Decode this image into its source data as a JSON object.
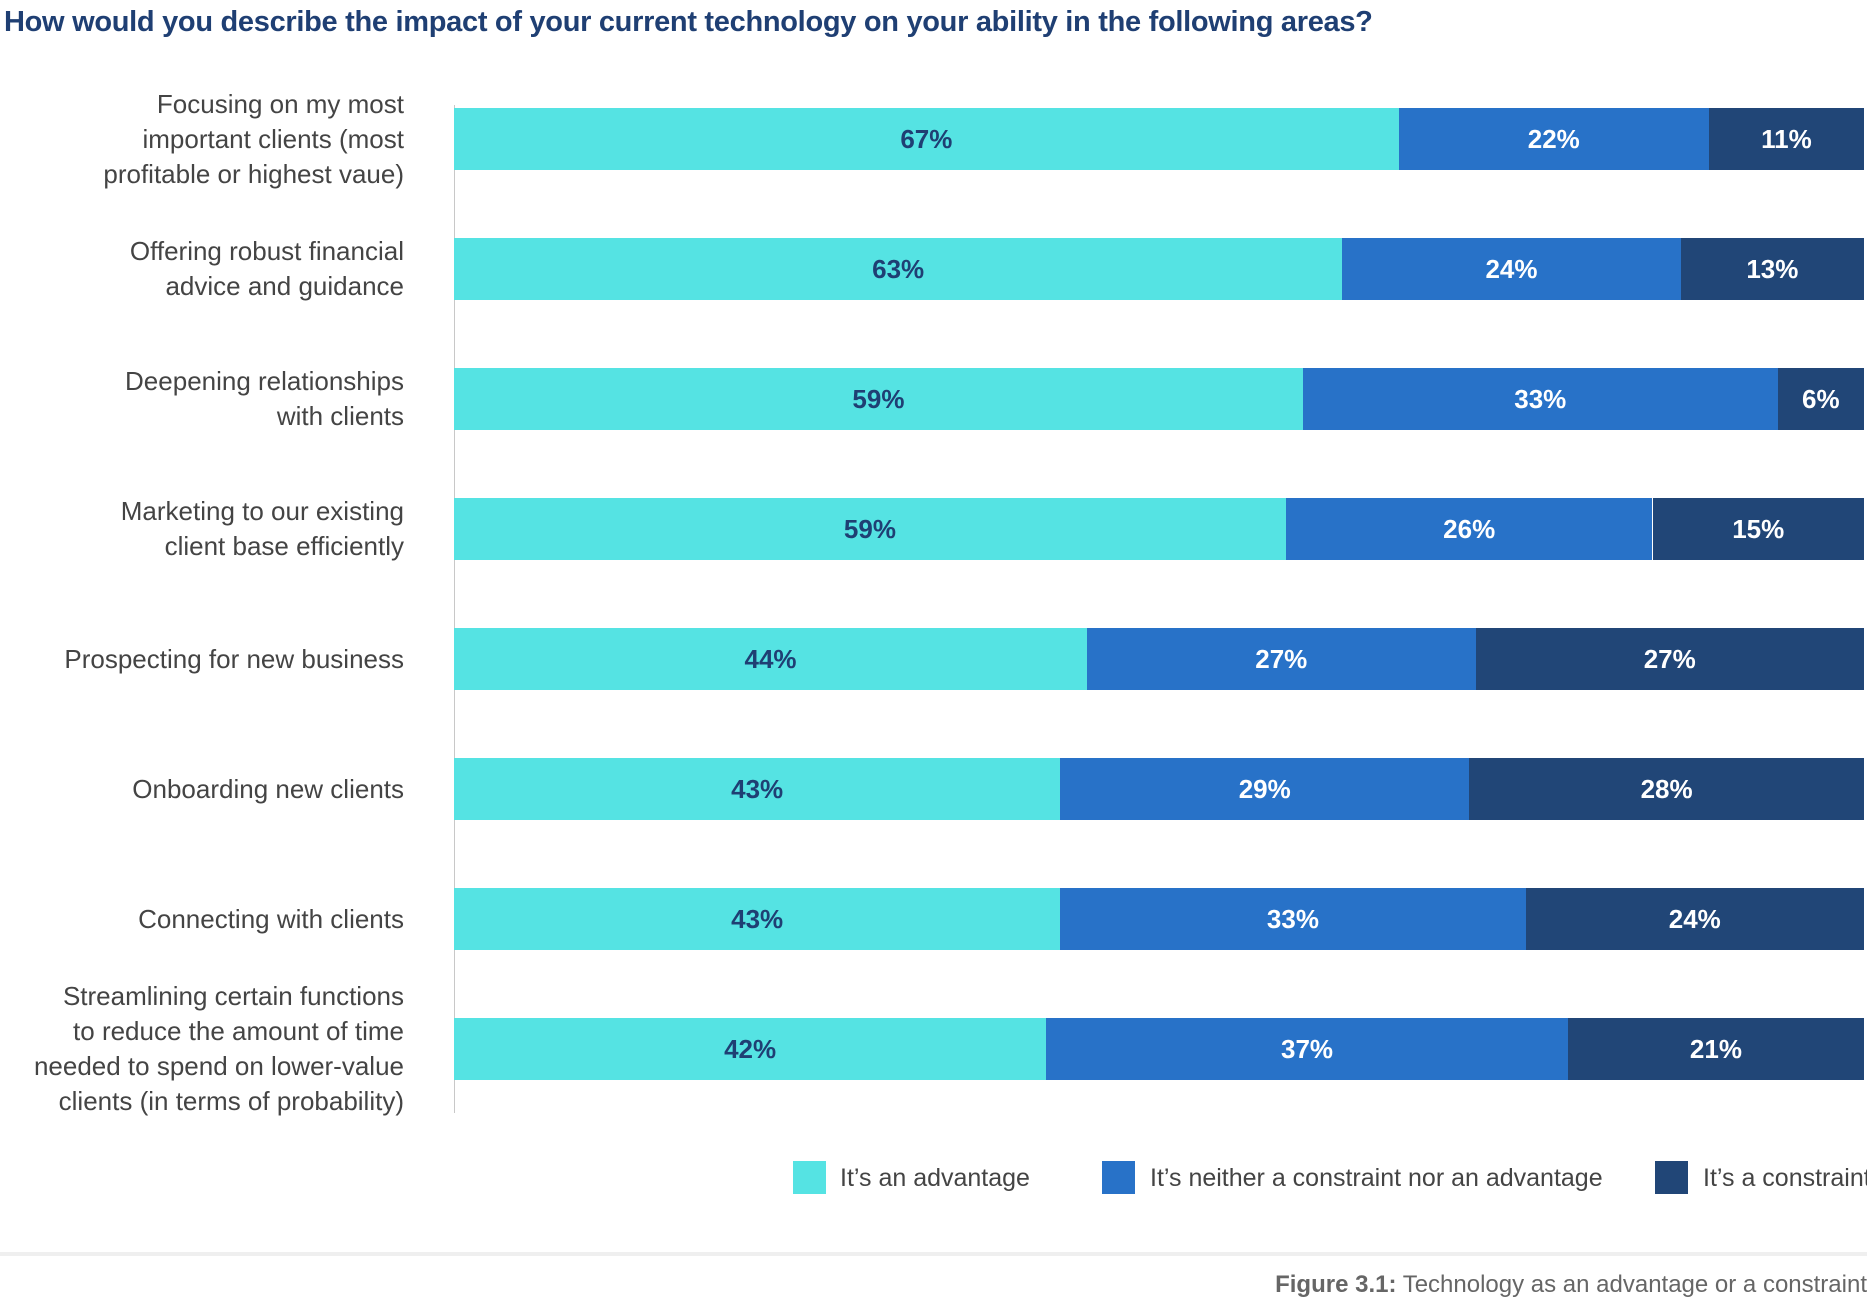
{
  "chart_data": {
    "type": "bar",
    "orientation": "horizontal",
    "stacked": true,
    "title": "How would you describe the impact of your current technology on your ability in the following areas?",
    "categories": [
      "Focusing on my most important clients (most profitable or highest vaue)",
      "Offering robust financial advice and guidance",
      "Deepening relationships with clients",
      "Marketing to our existing client base efficiently",
      "Prospecting for new business",
      "Onboarding new clients",
      "Connecting with clients",
      "Streamlining certain functions to reduce the amount of time needed to spend on lower-value clients (in terms of probability)"
    ],
    "category_lines": [
      [
        "Focusing on my most",
        "important clients (most",
        "profitable or highest vaue)"
      ],
      [
        "Offering robust financial",
        "advice and guidance"
      ],
      [
        "Deepening relationships",
        "with clients"
      ],
      [
        "Marketing to our existing",
        "client base efficiently"
      ],
      [
        "Prospecting for new business"
      ],
      [
        "Onboarding new clients"
      ],
      [
        "Connecting with clients"
      ],
      [
        "Streamlining certain functions",
        "to reduce the amount of time",
        "needed to spend on lower-value",
        "clients (in terms of probability)"
      ]
    ],
    "series": [
      {
        "name": "It’s an advantage",
        "color": "#55e3e3",
        "label_color": "#1f3f73",
        "values": [
          67,
          63,
          59,
          59,
          44,
          43,
          43,
          42
        ]
      },
      {
        "name": "It’s neither a constraint nor an advantage",
        "color": "#2872c8",
        "label_color": "#ffffff",
        "values": [
          22,
          24,
          33,
          26,
          27,
          29,
          33,
          37
        ]
      },
      {
        "name": "It’s a constraint",
        "color": "#214677",
        "label_color": "#ffffff",
        "values": [
          11,
          13,
          6,
          15,
          27,
          28,
          24,
          21
        ]
      }
    ],
    "value_suffix": "%",
    "legend_placement": "bottom-right",
    "grid": false
  },
  "caption": {
    "label": "Figure 3.1:",
    "text": " Technology as an advantage or a constraint"
  }
}
